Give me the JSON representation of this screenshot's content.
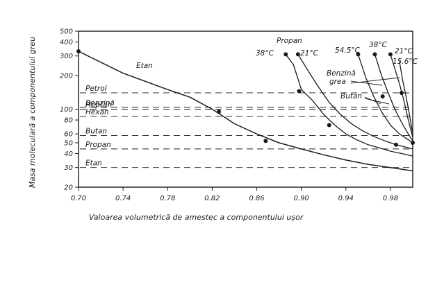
{
  "chart_data": {
    "type": "line",
    "title": "",
    "xlabel": "Valoarea volumetrică de amestec a componentului ușor",
    "ylabel": "Masa moleculară a componentului greu",
    "y_scale": "log",
    "xlim": [
      0.7,
      1.0
    ],
    "ylim": [
      20,
      500
    ],
    "x_ticks": [
      0.7,
      0.74,
      0.78,
      0.82,
      0.86,
      0.9,
      0.94,
      0.98
    ],
    "x_tick_labels": [
      "0.70",
      "0.74",
      "0.78",
      "0.82",
      "0.86",
      "0.90",
      "0.94",
      "0.98"
    ],
    "y_ticks": [
      20,
      30,
      40,
      50,
      60,
      80,
      100,
      200,
      300,
      400,
      500
    ],
    "y_tick_labels": [
      "20",
      "30",
      "40",
      "50",
      "60",
      "80",
      "100",
      "200",
      "300",
      "400",
      "500"
    ],
    "grid": false,
    "reference_lines": [
      {
        "label": "Petrol",
        "y": 140
      },
      {
        "label": "Benzină",
        "y": 104
      },
      {
        "label": "Hexan",
        "y": 86
      },
      {
        "label": "Heptan",
        "y": 100
      },
      {
        "label": "Butan",
        "y": 58
      },
      {
        "label": "Propan",
        "y": 44
      },
      {
        "label": "Etan",
        "y": 30
      }
    ],
    "series": [
      {
        "name": "Etan",
        "x": [
          0.7,
          0.74,
          0.78,
          0.8,
          0.82,
          0.84,
          0.86,
          0.88,
          0.9,
          0.92,
          0.94,
          0.96,
          0.98,
          1.0
        ],
        "y": [
          330,
          210,
          150,
          128,
          100,
          74,
          60,
          50,
          44,
          39,
          35,
          32,
          30,
          28
        ]
      },
      {
        "name": "38°C",
        "x": [
          0.886,
          0.893,
          0.9,
          0.91,
          0.92,
          0.93,
          0.94,
          0.95,
          0.96,
          0.97,
          0.98,
          0.99,
          1.0
        ],
        "y": [
          310,
          250,
          150,
          120,
          90,
          72,
          60,
          53,
          48,
          45,
          42,
          40,
          38
        ]
      },
      {
        "name": "21°C",
        "x": [
          0.897,
          0.905,
          0.915,
          0.925,
          0.935,
          0.945,
          0.955,
          0.965,
          0.975,
          0.985,
          1.0
        ],
        "y": [
          310,
          230,
          160,
          115,
          90,
          74,
          64,
          57,
          52,
          48,
          44
        ]
      },
      {
        "name": "54.5°C",
        "x": [
          0.951,
          0.958,
          0.965,
          0.972,
          0.98,
          0.988,
          0.995,
          1.0
        ],
        "y": [
          310,
          190,
          130,
          95,
          72,
          60,
          54,
          50
        ]
      },
      {
        "name": "38°C",
        "x": [
          0.966,
          0.972,
          0.978,
          0.984,
          0.99,
          0.996,
          1.0
        ],
        "y": [
          310,
          200,
          140,
          100,
          76,
          60,
          52
        ]
      },
      {
        "name": "21°C",
        "x": [
          0.98,
          0.984,
          0.988,
          0.992,
          0.996,
          1.0
        ],
        "y": [
          310,
          230,
          170,
          120,
          80,
          56
        ]
      },
      {
        "name": "15.6°C",
        "x": [
          0.988,
          0.991,
          0.994,
          0.997,
          1.0
        ],
        "y": [
          270,
          180,
          130,
          90,
          60
        ]
      }
    ],
    "markers": [
      {
        "x": 0.7,
        "y": 330
      },
      {
        "x": 0.826,
        "y": 95
      },
      {
        "x": 0.868,
        "y": 52
      },
      {
        "x": 0.886,
        "y": 310
      },
      {
        "x": 0.898,
        "y": 145
      },
      {
        "x": 0.897,
        "y": 310
      },
      {
        "x": 0.925,
        "y": 72
      },
      {
        "x": 0.951,
        "y": 310
      },
      {
        "x": 0.966,
        "y": 310
      },
      {
        "x": 0.973,
        "y": 130
      },
      {
        "x": 0.98,
        "y": 310
      },
      {
        "x": 0.985,
        "y": 48
      },
      {
        "x": 0.99,
        "y": 140
      },
      {
        "x": 1.0,
        "y": 50
      }
    ],
    "annotations": [
      {
        "text": "Propan"
      },
      {
        "text": "Benzină grea"
      },
      {
        "text": "Butan"
      }
    ]
  }
}
